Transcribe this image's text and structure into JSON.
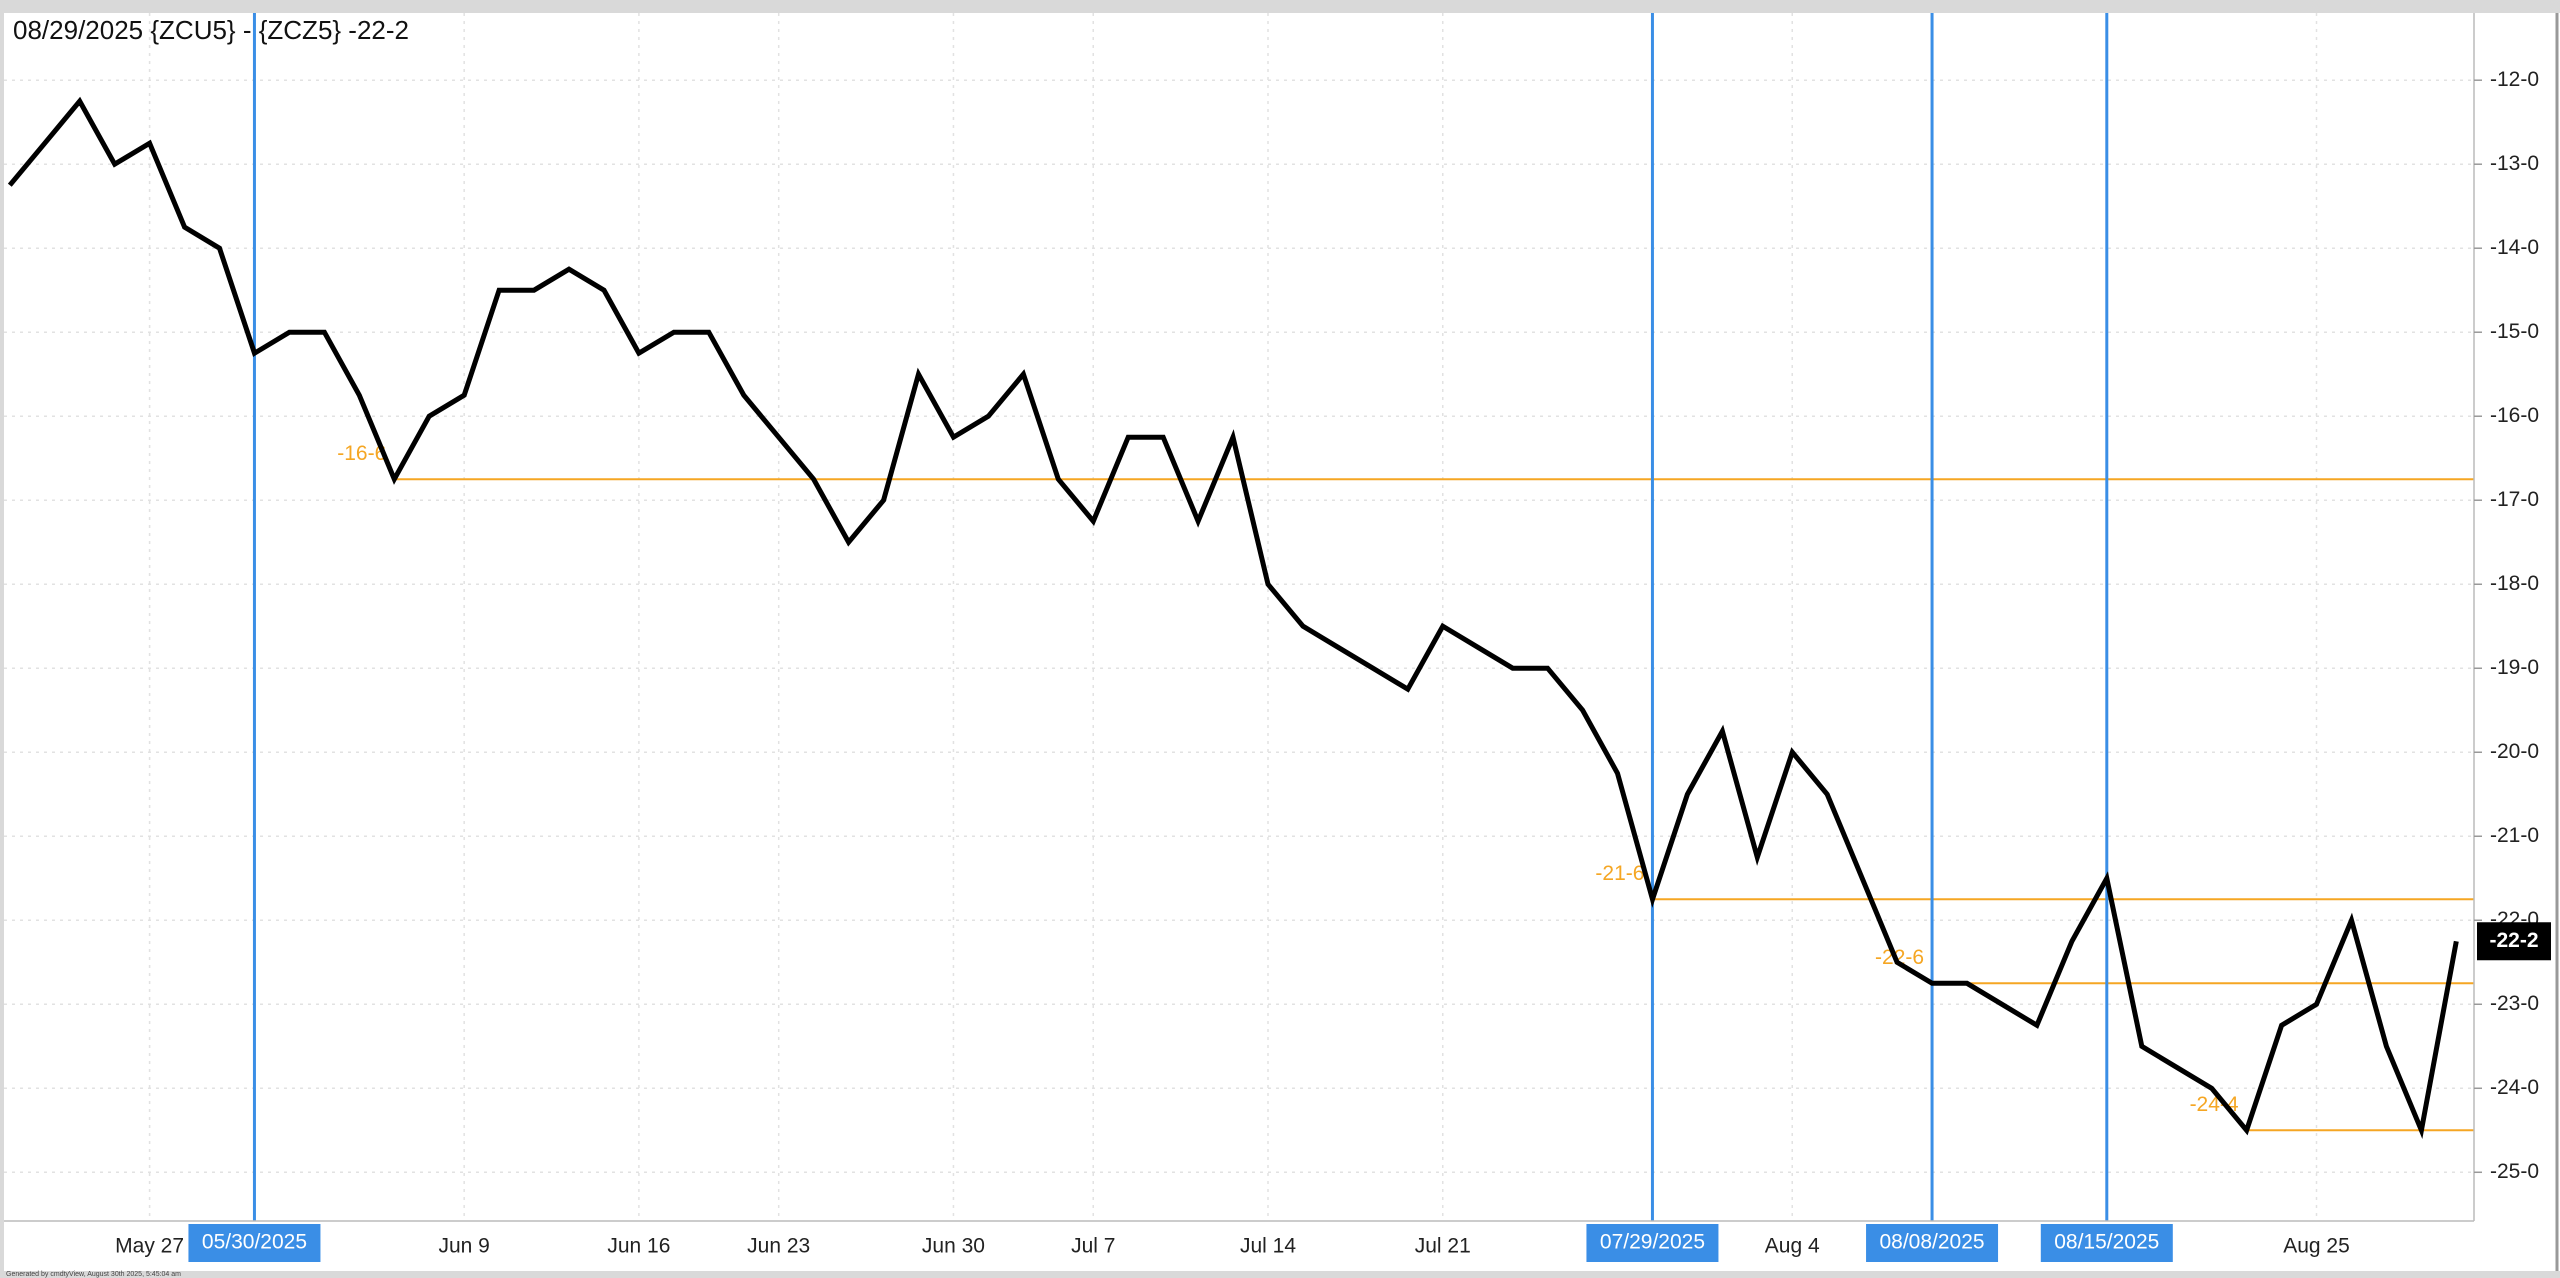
{
  "chart_data": {
    "type": "line",
    "title": "08/29/2025 {ZCU5} - {ZCZ5} -22-2",
    "footer": "Generated by cmdtyView, August 30th 2025, 5:45:04 am",
    "categories": [
      null,
      null,
      null,
      null,
      "May 27",
      null,
      null,
      null,
      null,
      null,
      null,
      null,
      null,
      "Jun 9",
      null,
      null,
      null,
      null,
      "Jun 16",
      null,
      null,
      null,
      "Jun 23",
      null,
      null,
      null,
      null,
      "Jun 30",
      null,
      null,
      null,
      "Jul 7",
      null,
      null,
      null,
      null,
      "Jul 14",
      null,
      null,
      null,
      null,
      "Jul 21",
      null,
      null,
      null,
      null,
      null,
      null,
      null,
      null,
      null,
      "Aug 4",
      null,
      null,
      null,
      null,
      null,
      null,
      null,
      null,
      null,
      null,
      null,
      null,
      null,
      null,
      "Aug 25",
      null,
      null,
      null,
      null
    ],
    "values": [
      -13.25,
      -12.75,
      -12.25,
      -13,
      -12.75,
      -13.75,
      -14,
      -15.25,
      -15,
      -15,
      -15.75,
      -16.75,
      -16,
      -15.75,
      -14.5,
      -14.5,
      -14.25,
      -14.5,
      -15.25,
      -15,
      -15,
      -15.75,
      -16.25,
      -16.75,
      -17.5,
      -17,
      -15.5,
      -16.25,
      -16,
      -15.5,
      -16.75,
      -17.25,
      -16.25,
      -16.25,
      -17.25,
      -16.25,
      -18,
      -18.5,
      -18.75,
      -19,
      -19.25,
      -18.5,
      -18.75,
      -19,
      -19,
      -19.5,
      -20.25,
      -21.75,
      -20.5,
      -19.75,
      -21.25,
      -20,
      -20.5,
      -21.5,
      -22.5,
      -22.75,
      -22.75,
      -23,
      -23.25,
      -22.25,
      -21.5,
      -23.5,
      -23.75,
      -24,
      -24.5,
      -23.25,
      -23,
      -22,
      -23.5,
      -24.5,
      -22.25
    ],
    "last_label": "-22-2",
    "color": "#000000",
    "ylim": [
      -25.58,
      -11.2
    ],
    "yticks": [
      {
        "value": -12,
        "label": "-12-0"
      },
      {
        "value": -13,
        "label": "-13-0"
      },
      {
        "value": -14,
        "label": "-14-0"
      },
      {
        "value": -15,
        "label": "-15-0"
      },
      {
        "value": -16,
        "label": "-16-0"
      },
      {
        "value": -17,
        "label": "-17-0"
      },
      {
        "value": -18,
        "label": "-18-0"
      },
      {
        "value": -19,
        "label": "-19-0"
      },
      {
        "value": -20,
        "label": "-20-0"
      },
      {
        "value": -21,
        "label": "-21-0"
      },
      {
        "value": -22,
        "label": "-22-0"
      },
      {
        "value": -23,
        "label": "-23-0"
      },
      {
        "value": -24,
        "label": "-24-0"
      },
      {
        "value": -25,
        "label": "-25-0"
      }
    ],
    "grid": true,
    "vlines": [
      {
        "label": "05/30/2025",
        "index": 7,
        "color": "#3a8ee6"
      },
      {
        "label": "07/29/2025",
        "index": 47,
        "color": "#3a8ee6"
      },
      {
        "label": "08/08/2025",
        "index": 55,
        "color": "#3a8ee6"
      },
      {
        "label": "08/15/2025",
        "index": 60,
        "color": "#3a8ee6"
      }
    ],
    "levels": [
      {
        "value": -16.75,
        "label": "-16-6",
        "from": 11,
        "color": "#f5a623"
      },
      {
        "value": -21.75,
        "label": "-21-6",
        "from": 47,
        "color": "#f5a623"
      },
      {
        "value": -22.75,
        "label": "-22-6",
        "from": 55,
        "color": "#f5a623"
      },
      {
        "value": -24.5,
        "label": "-24-4",
        "from": 64,
        "color": "#f5a623"
      }
    ]
  }
}
